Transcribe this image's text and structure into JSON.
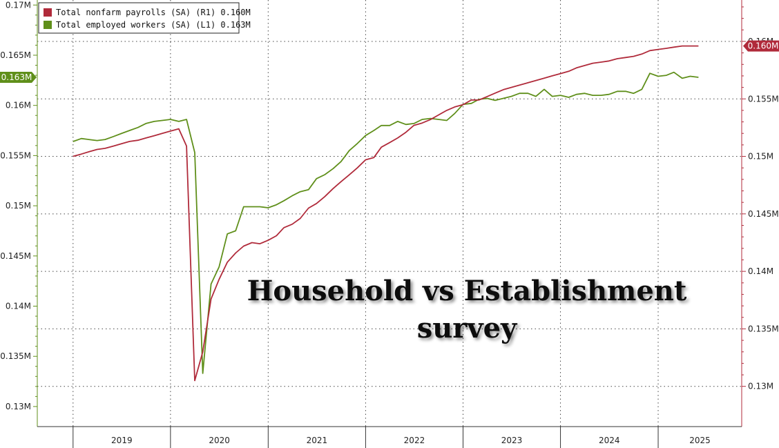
{
  "chart_data": {
    "type": "line",
    "title": [
      "Household vs Establishment",
      "survey"
    ],
    "x_axis": {
      "labels": [
        "2019",
        "2020",
        "2021",
        "2022",
        "2023",
        "2024",
        "2025"
      ]
    },
    "y_left": {
      "range": [
        0.128,
        0.1705
      ],
      "ticks": [
        0.13,
        0.135,
        0.14,
        0.145,
        0.15,
        0.155,
        0.16,
        0.165,
        0.17
      ],
      "tick_labels": [
        "0.13M",
        "0.135M",
        "0.14M",
        "0.145M",
        "0.15M",
        "0.155M",
        "0.16M",
        "0.165M",
        "0.17M"
      ]
    },
    "y_right": {
      "range": [
        0.1265,
        0.1636
      ],
      "ticks": [
        0.13,
        0.135,
        0.14,
        0.145,
        0.15,
        0.155,
        0.16
      ],
      "tick_labels": [
        "0.13M",
        "0.135M",
        "0.14M",
        "0.145M",
        "0.15M",
        "0.155M",
        "0.16M"
      ]
    },
    "grid": true,
    "legend": {
      "placement": "top-left",
      "entries": [
        {
          "label": "Total nonfarm payrolls (SA) (R1)  0.160M",
          "color": "#b02a3a"
        },
        {
          "label": "Total employed workers (SA) (L1) 0.163M",
          "color": "#5f8f1a"
        }
      ]
    },
    "last_value_badges": [
      {
        "text": "0.163M",
        "axis": "left",
        "value": 0.1628,
        "color": "#5f8f1a"
      },
      {
        "text": "0.160M",
        "axis": "right",
        "value": 0.1596,
        "color": "#b02a3a"
      }
    ],
    "series": [
      {
        "name": "Total employed workers (SA)",
        "axis": "left",
        "color": "#5f8f1a",
        "x": [
          "2019-01",
          "2019-02",
          "2019-03",
          "2019-04",
          "2019-05",
          "2019-06",
          "2019-07",
          "2019-08",
          "2019-09",
          "2019-10",
          "2019-11",
          "2019-12",
          "2020-01",
          "2020-02",
          "2020-03",
          "2020-04",
          "2020-05",
          "2020-06",
          "2020-07",
          "2020-08",
          "2020-09",
          "2020-10",
          "2020-11",
          "2020-12",
          "2021-01",
          "2021-02",
          "2021-03",
          "2021-04",
          "2021-05",
          "2021-06",
          "2021-07",
          "2021-08",
          "2021-09",
          "2021-10",
          "2021-11",
          "2021-12",
          "2022-01",
          "2022-02",
          "2022-03",
          "2022-04",
          "2022-05",
          "2022-06",
          "2022-07",
          "2022-08",
          "2022-09",
          "2022-10",
          "2022-11",
          "2022-12",
          "2023-01",
          "2023-02",
          "2023-03",
          "2023-04",
          "2023-05",
          "2023-06",
          "2023-07",
          "2023-08",
          "2023-09",
          "2023-10",
          "2023-11",
          "2023-12",
          "2024-01",
          "2024-02",
          "2024-03",
          "2024-04",
          "2024-05",
          "2024-06",
          "2024-07",
          "2024-08",
          "2024-09",
          "2024-10",
          "2024-11",
          "2024-12",
          "2025-01",
          "2025-02",
          "2025-03",
          "2025-04",
          "2025-05",
          "2025-06"
        ],
        "values": [
          0.1564,
          0.1567,
          0.1566,
          0.1565,
          0.1566,
          0.1569,
          0.1572,
          0.1575,
          0.1578,
          0.1582,
          0.1584,
          0.1585,
          0.1586,
          0.1584,
          0.1586,
          0.1553,
          0.1333,
          0.1422,
          0.1439,
          0.1472,
          0.1475,
          0.1499,
          0.1499,
          0.1499,
          0.1498,
          0.1501,
          0.1505,
          0.151,
          0.1514,
          0.1516,
          0.1527,
          0.1531,
          0.1537,
          0.1544,
          0.1555,
          0.1562,
          0.157,
          0.1575,
          0.158,
          0.158,
          0.1584,
          0.1581,
          0.1582,
          0.1586,
          0.1587,
          0.1586,
          0.1585,
          0.1592,
          0.1601,
          0.1602,
          0.1606,
          0.1607,
          0.1605,
          0.1607,
          0.1609,
          0.1612,
          0.1612,
          0.1609,
          0.1616,
          0.1609,
          0.161,
          0.1608,
          0.1611,
          0.1612,
          0.161,
          0.161,
          0.1611,
          0.1614,
          0.1614,
          0.1612,
          0.1616,
          0.1632,
          0.1629,
          0.163,
          0.1633,
          0.1627,
          0.1629,
          0.1628
        ]
      },
      {
        "name": "Total nonfarm payrolls (SA)",
        "axis": "right",
        "color": "#b02a3a",
        "x": [
          "2019-01",
          "2019-02",
          "2019-03",
          "2019-04",
          "2019-05",
          "2019-06",
          "2019-07",
          "2019-08",
          "2019-09",
          "2019-10",
          "2019-11",
          "2019-12",
          "2020-01",
          "2020-02",
          "2020-03",
          "2020-04",
          "2020-05",
          "2020-06",
          "2020-07",
          "2020-08",
          "2020-09",
          "2020-10",
          "2020-11",
          "2020-12",
          "2021-01",
          "2021-02",
          "2021-03",
          "2021-04",
          "2021-05",
          "2021-06",
          "2021-07",
          "2021-08",
          "2021-09",
          "2021-10",
          "2021-11",
          "2021-12",
          "2022-01",
          "2022-02",
          "2022-03",
          "2022-04",
          "2022-05",
          "2022-06",
          "2022-07",
          "2022-08",
          "2022-09",
          "2022-10",
          "2022-11",
          "2022-12",
          "2023-01",
          "2023-02",
          "2023-03",
          "2023-04",
          "2023-05",
          "2023-06",
          "2023-07",
          "2023-08",
          "2023-09",
          "2023-10",
          "2023-11",
          "2023-12",
          "2024-01",
          "2024-02",
          "2024-03",
          "2024-04",
          "2024-05",
          "2024-06",
          "2024-07",
          "2024-08",
          "2024-09",
          "2024-10",
          "2024-11",
          "2024-12",
          "2025-01",
          "2025-02",
          "2025-03",
          "2025-04",
          "2025-05",
          "2025-06"
        ],
        "values": [
          0.15,
          0.1502,
          0.1504,
          0.1506,
          0.1507,
          0.1509,
          0.1511,
          0.1513,
          0.1514,
          0.1516,
          0.1518,
          0.152,
          0.1522,
          0.1524,
          0.1509,
          0.1305,
          0.133,
          0.1376,
          0.1393,
          0.1408,
          0.1416,
          0.1422,
          0.1425,
          0.1424,
          0.1427,
          0.1431,
          0.1438,
          0.1441,
          0.1446,
          0.1455,
          0.1459,
          0.1465,
          0.1472,
          0.1478,
          0.1484,
          0.149,
          0.1497,
          0.1499,
          0.1508,
          0.1512,
          0.1516,
          0.1521,
          0.1527,
          0.1529,
          0.1532,
          0.1536,
          0.154,
          0.1543,
          0.1545,
          0.1549,
          0.1549,
          0.1552,
          0.1555,
          0.1558,
          0.156,
          0.1562,
          0.1564,
          0.1566,
          0.1568,
          0.157,
          0.1572,
          0.1574,
          0.1577,
          0.1579,
          0.1581,
          0.1582,
          0.1583,
          0.1585,
          0.1586,
          0.1587,
          0.1589,
          0.1592,
          0.1593,
          0.1594,
          0.1595,
          0.1596,
          0.1596,
          0.1596
        ]
      }
    ]
  }
}
